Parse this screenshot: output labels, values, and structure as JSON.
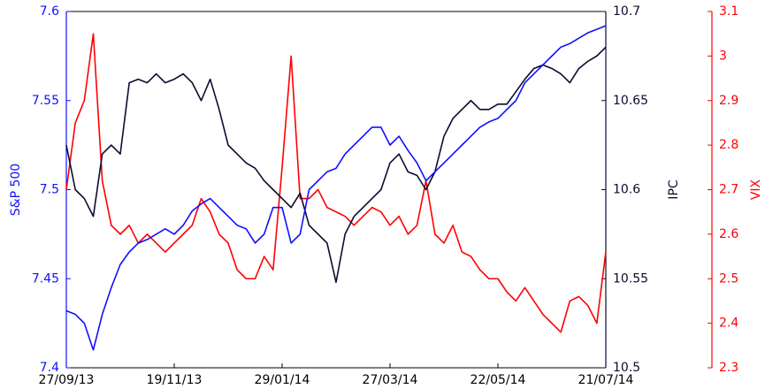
{
  "chart_data": {
    "type": "line",
    "ylabel": "S&P 500",
    "y2label": "IPC",
    "y3label": "VIX",
    "xticks": [
      "27/09/13",
      "19/11/13",
      "29/01/14",
      "27/03/14",
      "22/05/14",
      "21/07/14"
    ],
    "ylim": [
      7.4,
      7.6
    ],
    "yticks": [
      7.4,
      7.45,
      7.5,
      7.55,
      7.6
    ],
    "y2lim": [
      10.5,
      10.7
    ],
    "y2ticks": [
      10.5,
      10.55,
      10.6,
      10.65,
      10.7
    ],
    "y3lim": [
      2.3,
      3.1
    ],
    "y3ticks": [
      2.3,
      2.4,
      2.5,
      2.6,
      2.7,
      2.8,
      2.9,
      3,
      3.1
    ],
    "series": [
      {
        "name": "VIX",
        "axis": "y3",
        "color": "#ff0000",
        "values": [
          2.7,
          2.85,
          2.9,
          3.05,
          2.72,
          2.62,
          2.6,
          2.62,
          2.58,
          2.6,
          2.58,
          2.56,
          2.58,
          2.6,
          2.62,
          2.68,
          2.65,
          2.6,
          2.58,
          2.52,
          2.5,
          2.5,
          2.55,
          2.52,
          2.75,
          3.0,
          2.68,
          2.68,
          2.7,
          2.66,
          2.65,
          2.64,
          2.62,
          2.64,
          2.66,
          2.65,
          2.62,
          2.64,
          2.6,
          2.62,
          2.72,
          2.6,
          2.58,
          2.62,
          2.56,
          2.55,
          2.52,
          2.5,
          2.5,
          2.47,
          2.45,
          2.48,
          2.45,
          2.42,
          2.4,
          2.38,
          2.45,
          2.46,
          2.44,
          2.4,
          2.56
        ]
      },
      {
        "name": "IPC",
        "axis": "y2",
        "color": "#0b0b30",
        "values": [
          10.625,
          10.6,
          10.595,
          10.585,
          10.62,
          10.625,
          10.62,
          10.66,
          10.662,
          10.66,
          10.665,
          10.66,
          10.662,
          10.665,
          10.66,
          10.65,
          10.662,
          10.645,
          10.625,
          10.62,
          10.615,
          10.612,
          10.605,
          10.6,
          10.595,
          10.59,
          10.598,
          10.58,
          10.575,
          10.57,
          10.548,
          10.575,
          10.585,
          10.59,
          10.595,
          10.6,
          10.615,
          10.62,
          10.61,
          10.608,
          10.6,
          10.61,
          10.63,
          10.64,
          10.645,
          10.65,
          10.645,
          10.645,
          10.648,
          10.648,
          10.655,
          10.662,
          10.668,
          10.67,
          10.668,
          10.665,
          10.66,
          10.668,
          10.672,
          10.675,
          10.68
        ]
      },
      {
        "name": "S&P 500",
        "axis": "y",
        "color": "#1010ff",
        "values": [
          7.432,
          7.43,
          7.425,
          7.41,
          7.43,
          7.445,
          7.458,
          7.465,
          7.47,
          7.472,
          7.475,
          7.478,
          7.475,
          7.48,
          7.488,
          7.492,
          7.495,
          7.49,
          7.485,
          7.48,
          7.478,
          7.47,
          7.475,
          7.49,
          7.49,
          7.47,
          7.475,
          7.5,
          7.505,
          7.51,
          7.512,
          7.52,
          7.525,
          7.53,
          7.535,
          7.535,
          7.525,
          7.53,
          7.522,
          7.515,
          7.505,
          7.51,
          7.515,
          7.52,
          7.525,
          7.53,
          7.535,
          7.538,
          7.54,
          7.545,
          7.55,
          7.56,
          7.565,
          7.57,
          7.575,
          7.58,
          7.582,
          7.585,
          7.588,
          7.59,
          7.592
        ]
      }
    ]
  }
}
